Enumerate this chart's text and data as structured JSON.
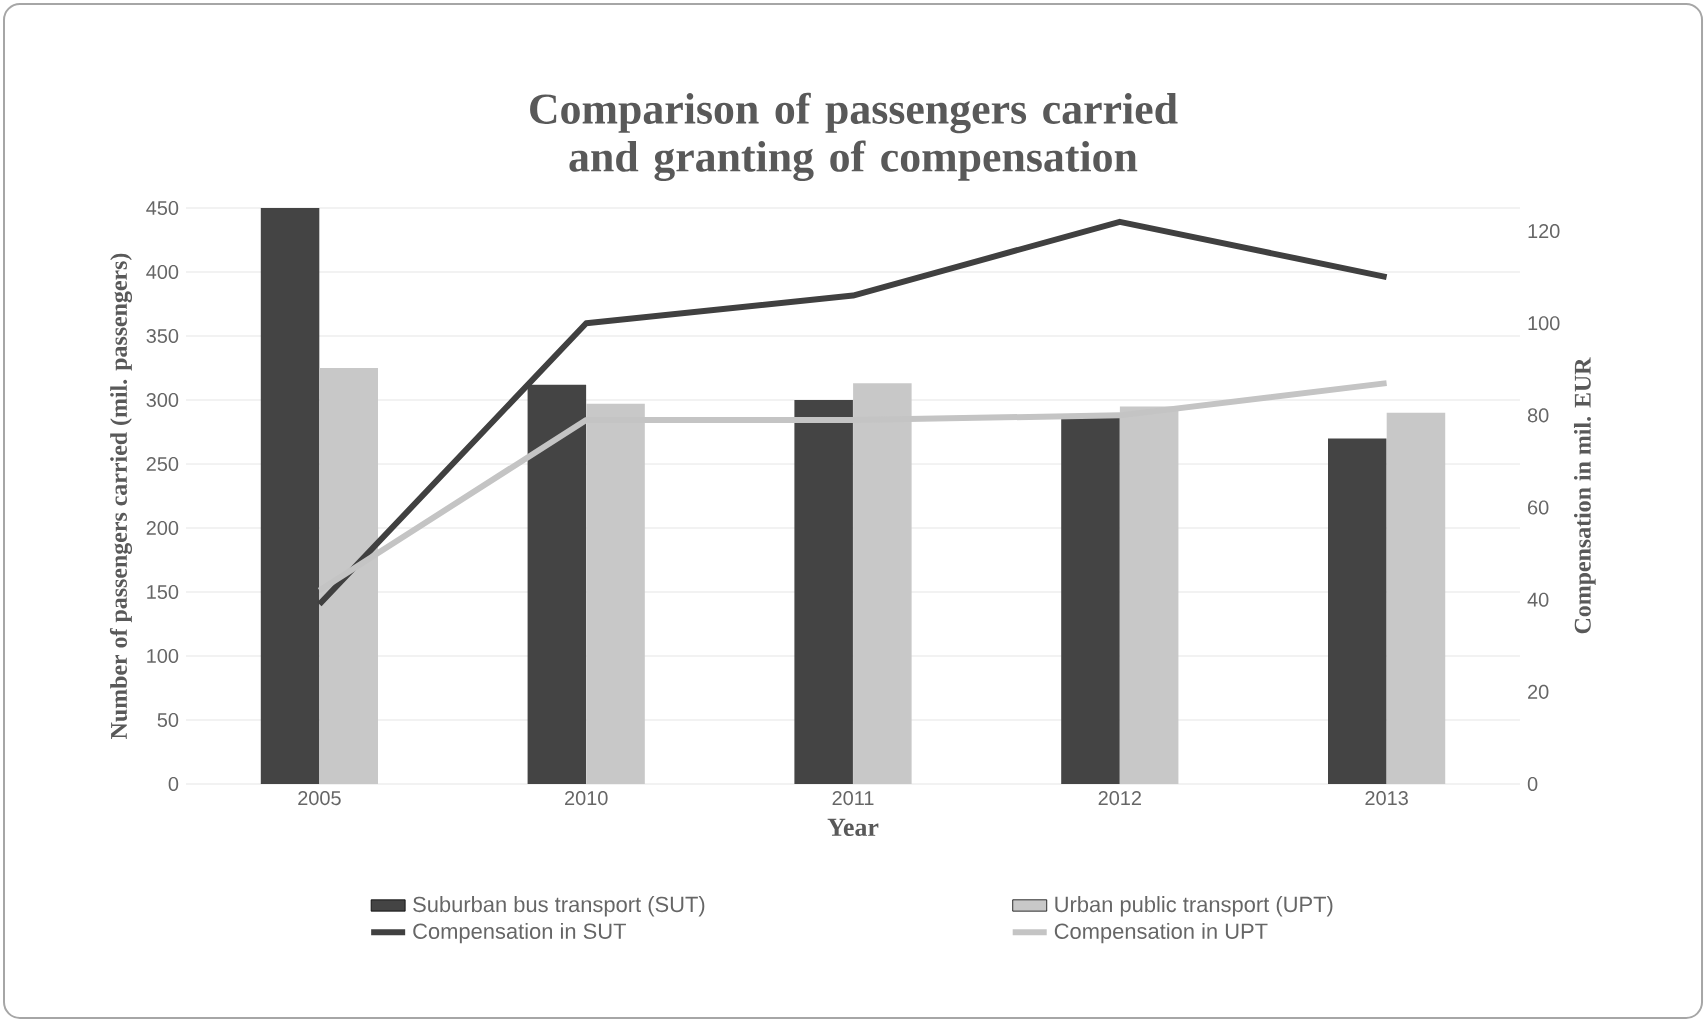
{
  "chart_data": {
    "type": "bar",
    "title": "Comparison of passengers carried and granting of compensation",
    "xlabel": "Year",
    "ylabel": "Number of passengers carried (mil. passengers)",
    "y2label": "Compensation in mil.  EUR",
    "categories": [
      "2005",
      "2010",
      "2011",
      "2012",
      "2013"
    ],
    "series": [
      {
        "name": "Suburban bus transport (SUT)",
        "color": "#444444",
        "values": [
          450,
          312,
          300,
          287,
          270
        ]
      },
      {
        "name": "Urban public transport (UPT)",
        "color": "#c8c8c8",
        "values": [
          325,
          297,
          313,
          295,
          290
        ]
      },
      {
        "name": "Compensation in SUT",
        "type": "line",
        "axis": "y2",
        "color": "#404040",
        "values": [
          39,
          100,
          106,
          122,
          110
        ]
      },
      {
        "name": "Compensation in UPT",
        "type": "line",
        "axis": "y2",
        "color": "#c4c4c4",
        "values": [
          42,
          79,
          79,
          80,
          87
        ]
      }
    ],
    "ylim": [
      0,
      450
    ],
    "yticks": [
      0,
      50,
      100,
      150,
      200,
      250,
      300,
      350,
      400,
      450
    ],
    "y2lim": [
      0,
      125
    ],
    "y2ticks": [
      0,
      20,
      40,
      60,
      80,
      100,
      120
    ],
    "grid": "y",
    "legend": "bottom",
    "marker": "none",
    "line_style": "solid"
  }
}
